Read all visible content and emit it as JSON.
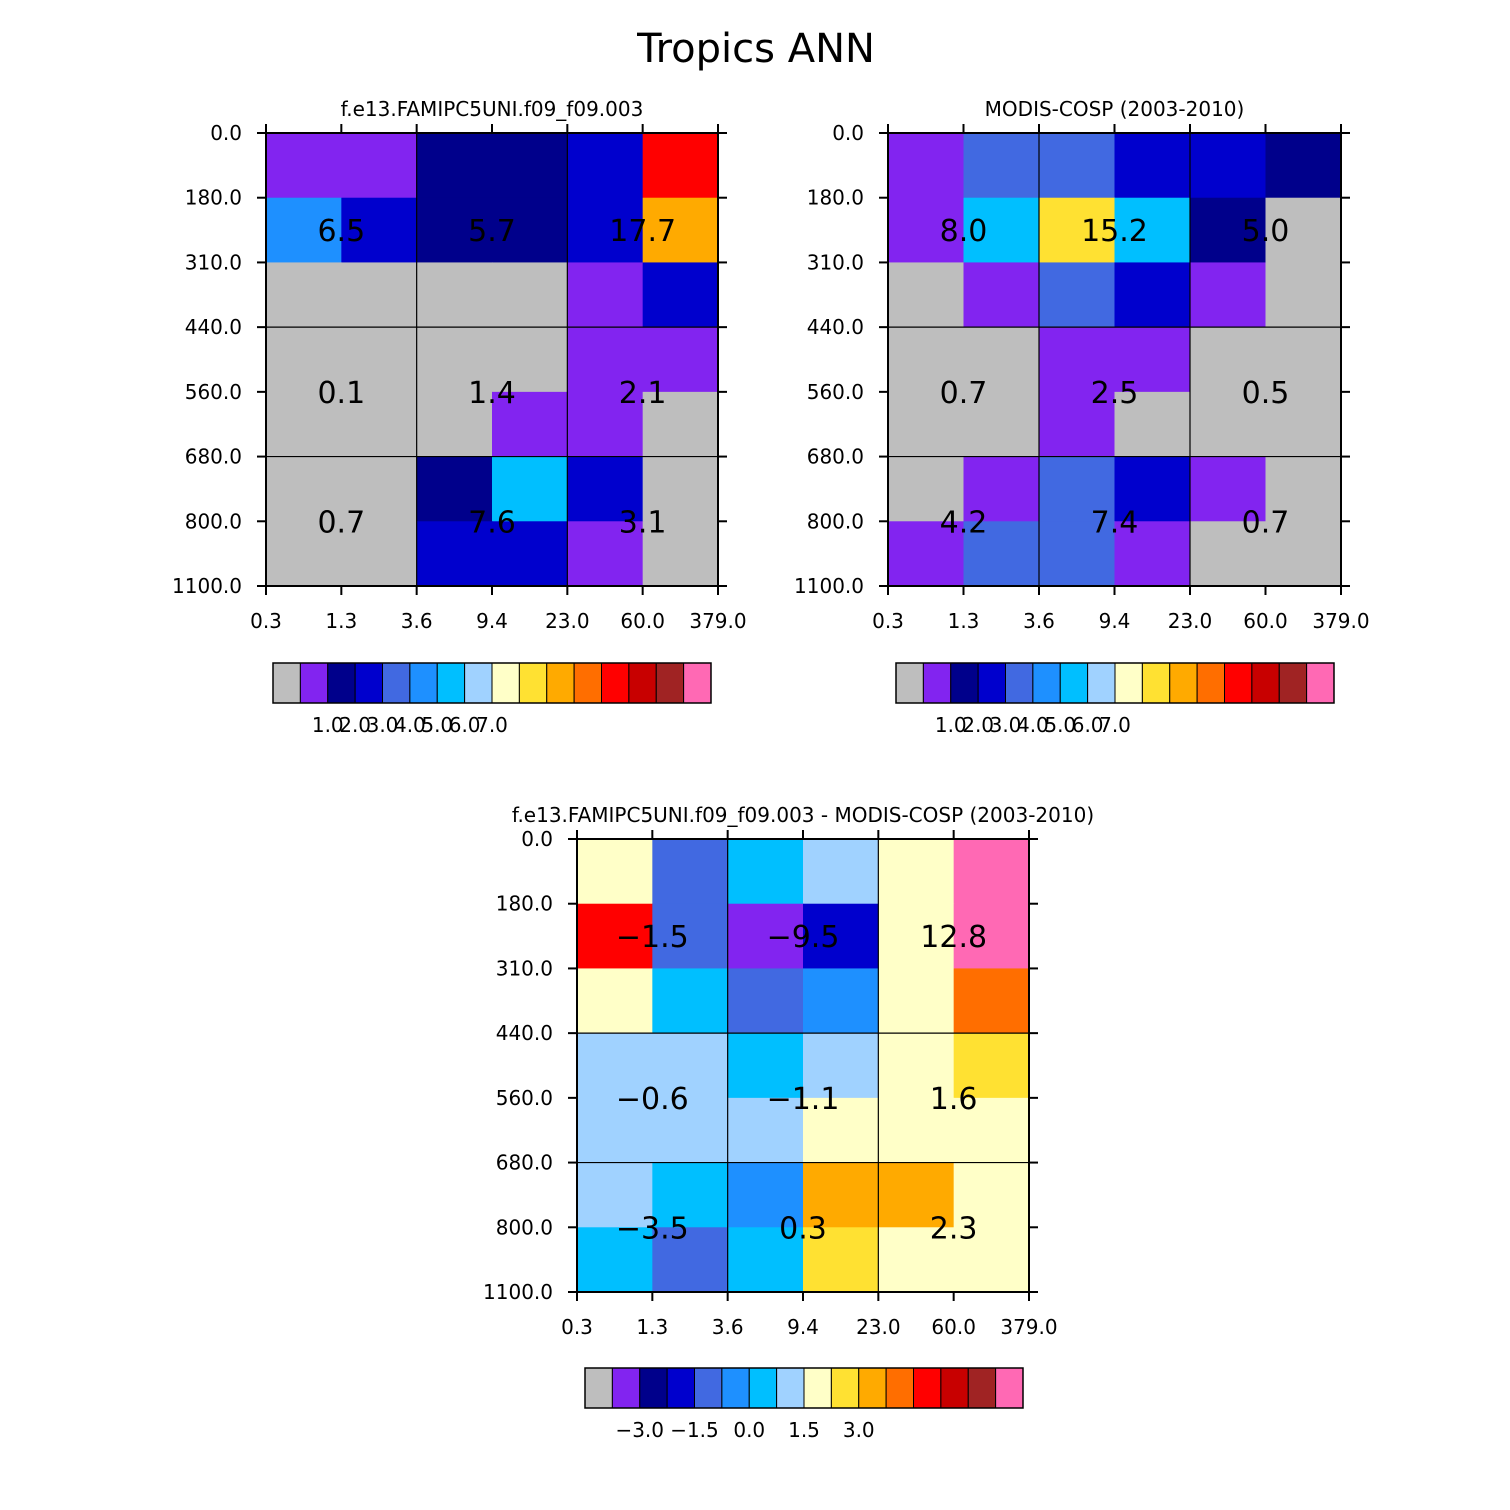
{
  "figure": {
    "title": "Tropics ANN"
  },
  "palette": [
    "#bebebe",
    "#8224f0",
    "#00008b",
    "#0000cd",
    "#4169e1",
    "#1e90ff",
    "#00bfff",
    "#a0d2ff",
    "#ffffc8",
    "#ffe132",
    "#ffaa00",
    "#ff6e00",
    "#ff0000",
    "#c80000",
    "#a02323",
    "#ff69b4"
  ],
  "chart_data": [
    {
      "type": "heatmap",
      "title": "f.e13.FAMIPC5UNI.f09_f09.003",
      "x_ticks": [
        "0.3",
        "1.3",
        "3.6",
        "9.4",
        "23.0",
        "60.0",
        "379.0"
      ],
      "y_ticks": [
        "0.0",
        "180.0",
        "310.0",
        "440.0",
        "560.0",
        "680.0",
        "800.0",
        "1100.0"
      ],
      "cell_color_index": [
        [
          1,
          1,
          2,
          2,
          3,
          12
        ],
        [
          5,
          3,
          2,
          2,
          3,
          10
        ],
        [
          0,
          0,
          0,
          0,
          1,
          3
        ],
        [
          0,
          0,
          0,
          0,
          1,
          1
        ],
        [
          0,
          0,
          0,
          1,
          1,
          0
        ],
        [
          0,
          0,
          2,
          6,
          3,
          0
        ],
        [
          0,
          0,
          3,
          3,
          1,
          0
        ]
      ],
      "block_values": [
        [
          "6.5",
          "5.7",
          "17.7"
        ],
        [
          "0.1",
          "1.4",
          "2.1"
        ],
        [
          "0.7",
          "7.6",
          "3.1"
        ]
      ],
      "colorbar": {
        "labels": [
          "1.0",
          "2.0",
          "3.0",
          "4.0",
          "5.0",
          "6.0",
          "7.0"
        ]
      }
    },
    {
      "type": "heatmap",
      "title": "MODIS-COSP (2003-2010)",
      "x_ticks": [
        "0.3",
        "1.3",
        "3.6",
        "9.4",
        "23.0",
        "60.0",
        "379.0"
      ],
      "y_ticks": [
        "0.0",
        "180.0",
        "310.0",
        "440.0",
        "560.0",
        "680.0",
        "800.0",
        "1100.0"
      ],
      "cell_color_index": [
        [
          1,
          4,
          4,
          3,
          3,
          2
        ],
        [
          1,
          6,
          9,
          6,
          2,
          0
        ],
        [
          0,
          1,
          4,
          3,
          1,
          0
        ],
        [
          0,
          0,
          1,
          1,
          0,
          0
        ],
        [
          0,
          0,
          1,
          0,
          0,
          0
        ],
        [
          0,
          1,
          4,
          3,
          1,
          0
        ],
        [
          1,
          4,
          4,
          1,
          0,
          0
        ]
      ],
      "block_values": [
        [
          "8.0",
          "15.2",
          "5.0"
        ],
        [
          "0.7",
          "2.5",
          "0.5"
        ],
        [
          "4.2",
          "7.4",
          "0.7"
        ]
      ],
      "colorbar": {
        "labels": [
          "1.0",
          "2.0",
          "3.0",
          "4.0",
          "5.0",
          "6.0",
          "7.0"
        ]
      }
    },
    {
      "type": "heatmap",
      "title": "f.e13.FAMIPC5UNI.f09_f09.003 - MODIS-COSP (2003-2010)",
      "x_ticks": [
        "0.3",
        "1.3",
        "3.6",
        "9.4",
        "23.0",
        "60.0",
        "379.0"
      ],
      "y_ticks": [
        "0.0",
        "180.0",
        "310.0",
        "440.0",
        "560.0",
        "680.0",
        "800.0",
        "1100.0"
      ],
      "cell_color_index": [
        [
          8,
          4,
          6,
          7,
          8,
          15
        ],
        [
          12,
          4,
          1,
          3,
          8,
          15
        ],
        [
          8,
          6,
          4,
          5,
          8,
          11
        ],
        [
          7,
          7,
          6,
          7,
          8,
          9
        ],
        [
          7,
          7,
          7,
          8,
          8,
          8
        ],
        [
          7,
          6,
          5,
          10,
          10,
          8
        ],
        [
          6,
          4,
          6,
          9,
          8,
          8
        ]
      ],
      "block_values": [
        [
          "-1.5",
          "-9.5",
          "12.8"
        ],
        [
          "-0.6",
          "-1.1",
          "1.6"
        ],
        [
          "-3.5",
          "0.3",
          "2.3"
        ]
      ],
      "colorbar": {
        "labels": [
          "-3.0",
          "-1.5",
          "0.0",
          "1.5",
          "3.0"
        ],
        "label_positions": [
          2,
          4,
          6,
          8,
          10
        ]
      }
    }
  ]
}
